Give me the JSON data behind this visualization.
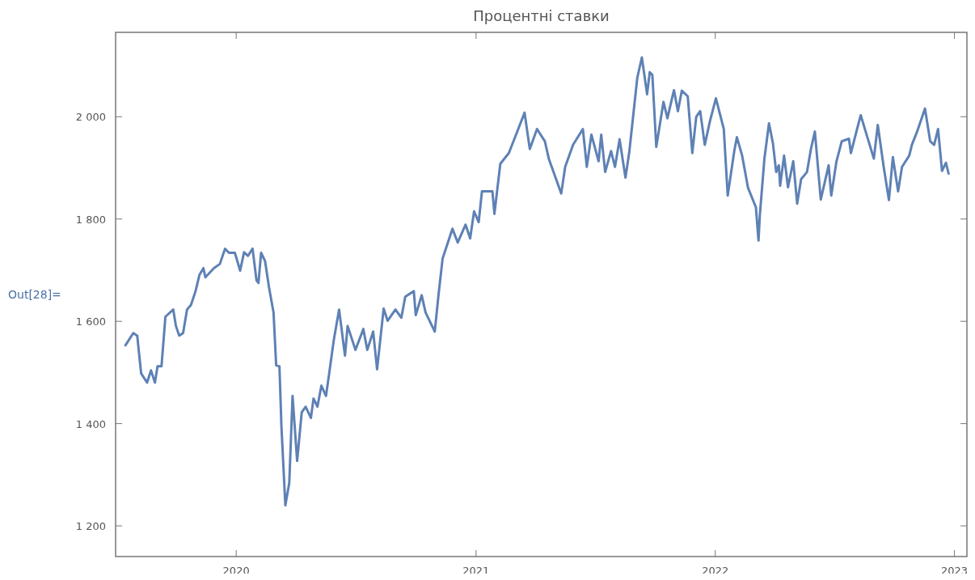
{
  "chart_data": {
    "type": "line",
    "title": "Процентні ставки",
    "annotations": [
      "Out[28]="
    ],
    "xlim": [
      "2019-07-01",
      "2023-01-20"
    ],
    "xticks": [
      "2020",
      "2021",
      "2022",
      "2023"
    ],
    "ylim": [
      1140,
      2165
    ],
    "yticks": [
      {
        "value": 1200,
        "label": "1 200"
      },
      {
        "value": 1400,
        "label": "1 400"
      },
      {
        "value": 1600,
        "label": "1 600"
      },
      {
        "value": 1800,
        "label": "1 800"
      },
      {
        "value": 2000,
        "label": "2 000"
      }
    ],
    "grid": false,
    "marker": "none",
    "line_style": "solid",
    "x": [
      "2019-07-16",
      "2019-07-28",
      "2019-08-03",
      "2019-08-07",
      "2019-08-09",
      "2019-08-18",
      "2019-08-24",
      "2019-08-30",
      "2019-09-03",
      "2019-09-09",
      "2019-09-11",
      "2019-09-15",
      "2019-09-27",
      "2019-10-01",
      "2019-10-06",
      "2019-10-12",
      "2019-10-18",
      "2019-10-24",
      "2019-10-31",
      "2019-11-06",
      "2019-11-12",
      "2019-11-15",
      "2019-11-28",
      "2019-12-07",
      "2019-12-15",
      "2019-12-21",
      "2019-12-30",
      "2020-01-07",
      "2020-01-13",
      "2020-01-19",
      "2020-01-26",
      "2020-02-01",
      "2020-02-04",
      "2020-02-08",
      "2020-02-14",
      "2020-02-20",
      "2020-02-27",
      "2020-03-02",
      "2020-03-07",
      "2020-03-10",
      "2020-03-16",
      "2020-03-22",
      "2020-03-27",
      "2020-04-03",
      "2020-04-10",
      "2020-04-16",
      "2020-04-24",
      "2020-04-28",
      "2020-05-04",
      "2020-05-10",
      "2020-05-17",
      "2020-05-21",
      "2020-05-29",
      "2020-06-06",
      "2020-06-15",
      "2020-06-19",
      "2020-07-01",
      "2020-07-13",
      "2020-07-19",
      "2020-07-28",
      "2020-08-03",
      "2020-08-13",
      "2020-08-19",
      "2020-08-31",
      "2020-09-09",
      "2020-09-15",
      "2020-09-28",
      "2020-10-01",
      "2020-10-10",
      "2020-10-16",
      "2020-10-30",
      "2020-11-05",
      "2020-11-11",
      "2020-11-26",
      "2020-12-04",
      "2020-12-16",
      "2020-12-23",
      "2020-12-29",
      "2021-01-05",
      "2021-01-10",
      "2021-01-26",
      "2021-01-29",
      "2021-02-07",
      "2021-02-20",
      "2021-03-04",
      "2021-03-16",
      "2021-03-24",
      "2021-04-04",
      "2021-04-16",
      "2021-04-22",
      "2021-05-11",
      "2021-05-17",
      "2021-05-29",
      "2021-06-13",
      "2021-06-19",
      "2021-06-26",
      "2021-07-07",
      "2021-07-11",
      "2021-07-17",
      "2021-07-26",
      "2021-08-01",
      "2021-08-08",
      "2021-08-17",
      "2021-08-23",
      "2021-09-04",
      "2021-09-11",
      "2021-09-19",
      "2021-09-23",
      "2021-09-27",
      "2021-10-03",
      "2021-10-14",
      "2021-10-20",
      "2021-10-30",
      "2021-11-05",
      "2021-11-11",
      "2021-11-20",
      "2021-11-27",
      "2021-12-03",
      "2021-12-09",
      "2021-12-16",
      "2021-12-24",
      "2022-01-02",
      "2022-01-14",
      "2022-01-20",
      "2022-01-30",
      "2022-02-03",
      "2022-02-11",
      "2022-02-20",
      "2022-03-04",
      "2022-03-08",
      "2022-03-10",
      "2022-03-17",
      "2022-03-24",
      "2022-03-30",
      "2022-04-04",
      "2022-04-08",
      "2022-04-10",
      "2022-04-16",
      "2022-04-22",
      "2022-04-30",
      "2022-05-06",
      "2022-05-12",
      "2022-05-21",
      "2022-05-27",
      "2022-06-02",
      "2022-06-11",
      "2022-06-23",
      "2022-06-27",
      "2022-07-05",
      "2022-07-13",
      "2022-07-24",
      "2022-07-27",
      "2022-08-06",
      "2022-08-11",
      "2022-08-18",
      "2022-08-31",
      "2022-09-06",
      "2022-09-15",
      "2022-09-23",
      "2022-09-29",
      "2022-10-07",
      "2022-10-13",
      "2022-10-24",
      "2022-10-28",
      "2022-11-05",
      "2022-11-17",
      "2022-11-25",
      "2022-12-01",
      "2022-12-07",
      "2022-12-13",
      "2022-12-19",
      "2022-12-23"
    ],
    "series": [
      {
        "color": "#5e81b5",
        "values": [
          1553,
          1577,
          1572,
          1522,
          1498,
          1480,
          1504,
          1480,
          1512,
          1512,
          1544,
          1609,
          1623,
          1591,
          1572,
          1577,
          1623,
          1632,
          1659,
          1691,
          1704,
          1686,
          1704,
          1712,
          1742,
          1734,
          1734,
          1699,
          1735,
          1728,
          1742,
          1680,
          1675,
          1734,
          1718,
          1667,
          1617,
          1514,
          1512,
          1395,
          1240,
          1284,
          1454,
          1327,
          1422,
          1433,
          1411,
          1449,
          1433,
          1474,
          1454,
          1490,
          1564,
          1623,
          1533,
          1591,
          1544,
          1585,
          1544,
          1580,
          1506,
          1625,
          1601,
          1623,
          1607,
          1648,
          1659,
          1612,
          1651,
          1617,
          1580,
          1655,
          1723,
          1781,
          1754,
          1789,
          1762,
          1815,
          1794,
          1854,
          1854,
          1810,
          1908,
          1929,
          1968,
          2008,
          1937,
          1976,
          1952,
          1918,
          1850,
          1902,
          1945,
          1976,
          1902,
          1965,
          1913,
          1965,
          1892,
          1933,
          1902,
          1956,
          1881,
          1933,
          2076,
          2116,
          2044,
          2087,
          2082,
          1941,
          2029,
          1997,
          2052,
          2011,
          2051,
          2040,
          1929,
          2000,
          2011,
          1945,
          1992,
          2036,
          1976,
          1846,
          1933,
          1960,
          1924,
          1861,
          1823,
          1758,
          1807,
          1918,
          1987,
          1948,
          1892,
          1905,
          1865,
          1924,
          1862,
          1913,
          1830,
          1878,
          1892,
          1937,
          1971,
          1838,
          1905,
          1846,
          1913,
          1952,
          1957,
          1929,
          1979,
          2003,
          1973,
          1918,
          1984,
          1902,
          1837,
          1921,
          1854,
          1902,
          1924,
          1945,
          1971,
          2016,
          1952,
          1945,
          1976,
          1894,
          1910,
          1889
        ]
      }
    ]
  }
}
